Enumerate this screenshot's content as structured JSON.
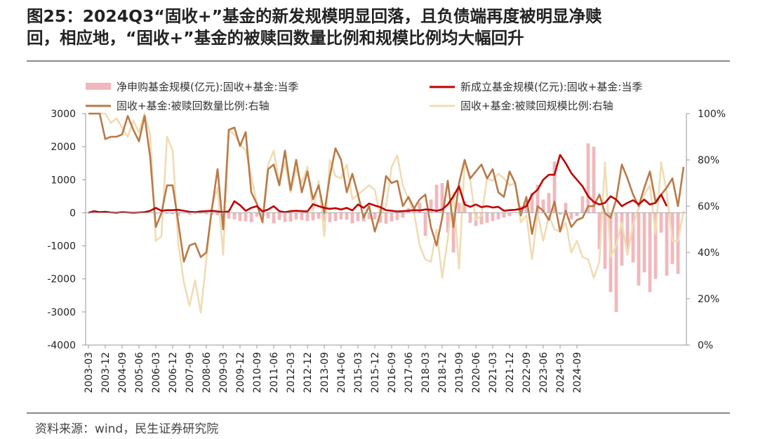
{
  "title_lines": [
    "图25：2024Q3“固收+”基金的新发规模明显回落，且负债端再度被明显净赎",
    "回，相应地，“固收+”基金的被赎回数量比例和规模比例均大幅回升"
  ],
  "source": "资料来源：wind，民生证券研究院",
  "colors": {
    "bars": "#f0b8bc",
    "new_funds": "#c00000",
    "redeemed_count": "#b97a48",
    "redeemed_scale": "#f0dcb4"
  },
  "chart_data": {
    "type": "bar+line",
    "title": "",
    "x_ticks": [
      "2003-03",
      "2003-12",
      "2004-09",
      "2005-06",
      "2006-03",
      "2006-12",
      "2007-09",
      "2008-06",
      "2009-03",
      "2009-12",
      "2010-09",
      "2011-06",
      "2012-03",
      "2012-12",
      "2013-09",
      "2014-06",
      "2015-03",
      "2015-12",
      "2016-09",
      "2017-06",
      "2018-03",
      "2018-12",
      "2019-09",
      "2020-06",
      "2021-03",
      "2021-12",
      "2022-09",
      "2023-06",
      "2024-03",
      "2024-09"
    ],
    "y_left": {
      "min": -4000,
      "max": 3000,
      "step": 1000,
      "ticks": [
        "3000",
        "2000",
        "1000",
        "0",
        "-1000",
        "-2000",
        "-3000",
        "-4000"
      ]
    },
    "y_right": {
      "min": 0,
      "max": 100,
      "ticks": [
        "100%",
        "80%",
        "60%",
        "40%",
        "20%",
        "0%"
      ]
    },
    "series": [
      {
        "name": "净申购基金规模(亿元):固收+基金:当季",
        "type": "bar",
        "axis": "left",
        "values": [
          0,
          0,
          0,
          0,
          0,
          0,
          0,
          0,
          0,
          0,
          0,
          0,
          -30,
          -60,
          -30,
          -40,
          -90,
          -20,
          -60,
          -40,
          -30,
          -40,
          -60,
          -80,
          -100,
          -180,
          -200,
          -250,
          -260,
          -280,
          -120,
          -90,
          -170,
          -320,
          -220,
          -280,
          -270,
          -200,
          -220,
          -250,
          -230,
          -180,
          -260,
          -280,
          -250,
          -200,
          -210,
          -320,
          -250,
          -260,
          -190,
          -200,
          -300,
          -330,
          -260,
          -220,
          -150,
          150,
          200,
          300,
          -700,
          400,
          850,
          900,
          -600,
          -1200,
          300,
          350,
          -300,
          -400,
          -350,
          -300,
          -250,
          -200,
          -150,
          -100,
          0,
          200,
          400,
          600,
          850,
          400,
          600,
          1550,
          -50,
          300,
          -200,
          -100,
          500,
          2100,
          2000,
          -1100,
          -1700,
          -2400,
          -3000,
          -1600,
          -1200,
          -1500,
          -2200,
          -1800,
          -2400,
          -2000,
          -600,
          -1900,
          -1550,
          -1850
        ],
        "_note": null
      },
      {
        "name": "新成立基金规模(亿元):固收+基金:当季",
        "type": "line",
        "axis": "left",
        "values": [
          0,
          50,
          20,
          30,
          10,
          0,
          20,
          10,
          0,
          10,
          20,
          60,
          150,
          60,
          80,
          80,
          90,
          60,
          30,
          20,
          40,
          50,
          60,
          40,
          20,
          40,
          350,
          230,
          60,
          150,
          200,
          40,
          100,
          200,
          50,
          20,
          50,
          60,
          50,
          40,
          260,
          200,
          150,
          120,
          140,
          100,
          150,
          70,
          250,
          150,
          280,
          220,
          170,
          80,
          60,
          40,
          50,
          60,
          80,
          70,
          100,
          90,
          60,
          100,
          250,
          500,
          800,
          250,
          180,
          250,
          170,
          200,
          160,
          180,
          60,
          80,
          90,
          120,
          200,
          550,
          700,
          1000,
          1150,
          1150,
          1750,
          1500,
          1200,
          1000,
          800,
          500,
          330,
          250,
          300,
          500,
          400,
          200,
          300,
          380,
          260,
          400,
          250,
          300,
          550,
          200
        ]
      },
      {
        "name": "固收+基金:被赎回数量比例:右轴",
        "type": "line",
        "axis": "right",
        "values": [
          100,
          100,
          100,
          89,
          90,
          90,
          91,
          99,
          93,
          88,
          99,
          81,
          51,
          57,
          69,
          69,
          53,
          36,
          43,
          44,
          38,
          40,
          59,
          76,
          50,
          93,
          94,
          86,
          92,
          66,
          61,
          53,
          76,
          78,
          69,
          84,
          67,
          80,
          66,
          75,
          63,
          69,
          57,
          73,
          85,
          80,
          66,
          74,
          65,
          55,
          60,
          49,
          57,
          73,
          70,
          71,
          60,
          64,
          59,
          63,
          65,
          51,
          43,
          55,
          71,
          51,
          70,
          80,
          72,
          75,
          78,
          72,
          76,
          66,
          64,
          75,
          70,
          56,
          64,
          48,
          60,
          58,
          54,
          62,
          49,
          58,
          51,
          54,
          55,
          60,
          60,
          65,
          57,
          55,
          63,
          78,
          72,
          65,
          60,
          68,
          75,
          62,
          65,
          68,
          72,
          60,
          77
        ]
      },
      {
        "name": "固收+基金:被赎回规模比例:右轴",
        "type": "line",
        "axis": "right",
        "values": [
          100,
          100,
          100,
          100,
          96,
          98,
          94,
          90,
          97,
          92,
          100,
          91,
          45,
          47,
          90,
          84,
          44,
          27,
          17,
          28,
          14,
          37,
          60,
          68,
          39,
          93,
          91,
          87,
          84,
          73,
          61,
          54,
          78,
          84,
          70,
          79,
          66,
          76,
          70,
          77,
          58,
          71,
          47,
          80,
          73,
          72,
          78,
          63,
          65,
          67,
          69,
          67,
          56,
          60,
          77,
          82,
          69,
          63,
          57,
          43,
          37,
          36,
          50,
          29,
          46,
          66,
          33,
          79,
          71,
          54,
          56,
          72,
          71,
          74,
          72,
          69,
          70,
          53,
          56,
          37,
          57,
          45,
          56,
          50,
          49,
          53,
          40,
          45,
          38,
          37,
          29,
          36,
          79,
          38,
          43,
          53,
          39,
          52,
          59,
          65,
          69,
          48,
          79,
          66,
          45,
          45,
          58
        ]
      }
    ]
  }
}
